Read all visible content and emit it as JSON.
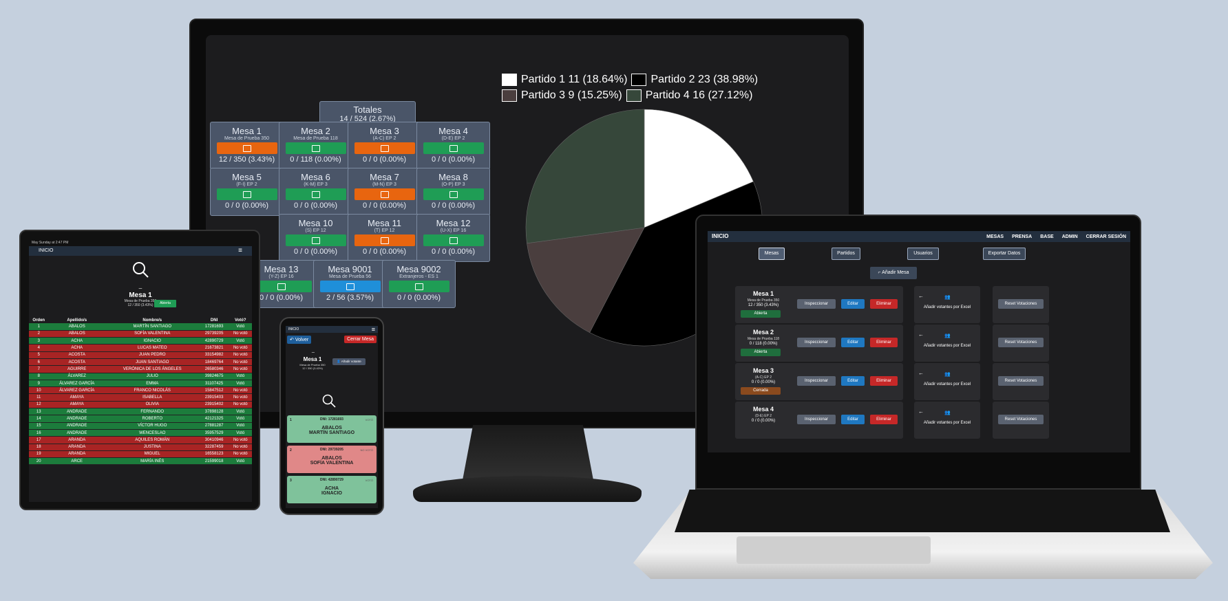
{
  "monitor": {
    "totales": {
      "label": "Totales",
      "count": "14 / 524 (2.67%)"
    },
    "tiles": [
      {
        "name": "Mesa 1",
        "sub": "Mesa de Prueba 350",
        "count": "12 / 350 (3.43%)",
        "state": "orange",
        "icon": "envelope-icon"
      },
      {
        "name": "Mesa 2",
        "sub": "Mesa de Prueba 118",
        "count": "0 / 118 (0.00%)",
        "state": "green",
        "icon": "ballot-icon"
      },
      {
        "name": "Mesa 3",
        "sub": "(A-C) EP 2",
        "count": "0 / 0 (0.00%)",
        "state": "orange",
        "icon": "envelope-icon"
      },
      {
        "name": "Mesa 4",
        "sub": "(D-E) EP 2",
        "count": "0 / 0 (0.00%)",
        "state": "green",
        "icon": "ballot-icon"
      },
      {
        "name": "Mesa 5",
        "sub": "(F-I) EP 2",
        "count": "0 / 0 (0.00%)",
        "state": "green",
        "icon": "ballot-icon"
      },
      {
        "name": "Mesa 6",
        "sub": "(K-M) EP 3",
        "count": "0 / 0 (0.00%)",
        "state": "green",
        "icon": "ballot-icon"
      },
      {
        "name": "Mesa 7",
        "sub": "(M-N) EP 3",
        "count": "0 / 0 (0.00%)",
        "state": "orange",
        "icon": "envelope-icon"
      },
      {
        "name": "Mesa 8",
        "sub": "(O-P) EP 3",
        "count": "0 / 0 (0.00%)",
        "state": "green",
        "icon": "ballot-icon"
      },
      {
        "name": "Mesa 10",
        "sub": "(S) EP 12",
        "count": "0 / 0 (0.00%)",
        "state": "green",
        "icon": "ballot-icon"
      },
      {
        "name": "Mesa 11",
        "sub": "(T) EP 12",
        "count": "0 / 0 (0.00%)",
        "state": "orange",
        "icon": "envelope-icon"
      },
      {
        "name": "Mesa 12",
        "sub": "(U-X) EP 16",
        "count": "0 / 0 (0.00%)",
        "state": "green",
        "icon": "ballot-icon"
      },
      {
        "name": "Mesa 13",
        "sub": "(Y-Z) EP 16",
        "count": "0 / 0 (0.00%)",
        "state": "green",
        "icon": "ballot-icon"
      },
      {
        "name": "Mesa 9001",
        "sub": "Mesa de Prueba 56",
        "count": "2 / 56 (3.57%)",
        "state": "blue",
        "icon": "send-icon"
      },
      {
        "name": "Mesa 9002",
        "sub": "Extranjeros - ES 1",
        "count": "0 / 0 (0.00%)",
        "state": "green",
        "icon": "ballot-icon"
      }
    ],
    "legend": [
      {
        "label": "Partido 1 11 (18.64%)",
        "color": "#ffffff"
      },
      {
        "label": "Partido 2 23 (38.98%)",
        "color": "#000000"
      },
      {
        "label": "Partido 3 9 (15.25%)",
        "color": "#4a3e3e"
      },
      {
        "label": "Partido 4 16 (27.12%)",
        "color": "#36473a"
      }
    ]
  },
  "chart_data": {
    "type": "pie",
    "categories": [
      "Partido 1",
      "Partido 2",
      "Partido 3",
      "Partido 4"
    ],
    "values": [
      11,
      23,
      9,
      16
    ],
    "percentages": [
      18.64,
      38.98,
      15.25,
      27.12
    ],
    "colors": [
      "#ffffff",
      "#000000",
      "#4a3e3e",
      "#36473a"
    ],
    "legend_position": "top"
  },
  "tablet": {
    "status": "May Sunday at 2:47 PM",
    "nav_title": "INICIO",
    "dash": "_",
    "mesa_title": "Mesa 1",
    "mesa_sub": "Mesa de Prueba 350",
    "mesa_count": "12 / 350 (3.43%)",
    "open_badge": "Abierta",
    "headers": [
      "Orden",
      "Apellido/s",
      "Nombre/s",
      "DNI",
      "Votó?"
    ],
    "rows": [
      [
        "1",
        "ABALOS",
        "MARTÍN SANTIAGO",
        "17281693",
        "Votó"
      ],
      [
        "2",
        "ABALOS",
        "SOFÍA VALENTINA",
        "29739205",
        "No votó"
      ],
      [
        "3",
        "ACHA",
        "IGNACIO",
        "42890729",
        "Votó"
      ],
      [
        "4",
        "ACHA",
        "LUCAS MATEO",
        "21673821",
        "No votó"
      ],
      [
        "5",
        "ACOSTA",
        "JUAN PEDRO",
        "33154982",
        "No votó"
      ],
      [
        "6",
        "ACOSTA",
        "JUAN SANTIAGO",
        "18469764",
        "No votó"
      ],
      [
        "7",
        "AGUIRRE",
        "VERÓNICA DE LOS ÁNGELES",
        "26580346",
        "No votó"
      ],
      [
        "8",
        "ÁLVAREZ",
        "JULIO",
        "39824675",
        "Votó"
      ],
      [
        "9",
        "ÁLVAREZ GARCÍA",
        "EMMA",
        "31107425",
        "Votó"
      ],
      [
        "10",
        "ÁLVAREZ GARCÍA",
        "FRANCO NICOLÁS",
        "15847512",
        "No votó"
      ],
      [
        "11",
        "AMAYA",
        "ISABELLA",
        "23915403",
        "No votó"
      ],
      [
        "12",
        "AMAYA",
        "OLIVIA",
        "23915402",
        "No votó"
      ],
      [
        "13",
        "ANDRADE",
        "FERNANDO",
        "37898128",
        "Votó"
      ],
      [
        "14",
        "ANDRADE",
        "ROBERTO",
        "42121325",
        "Votó"
      ],
      [
        "15",
        "ANDRADE",
        "VÍCTOR HUGO",
        "27881287",
        "Votó"
      ],
      [
        "16",
        "ANDRADE",
        "WENCESLAO",
        "35957529",
        "Votó"
      ],
      [
        "17",
        "ARANDA",
        "AQUILES ROMÁN",
        "30410946",
        "No votó"
      ],
      [
        "18",
        "ARANDA",
        "JUSTINA",
        "32287459",
        "No votó"
      ],
      [
        "19",
        "ARANDA",
        "MIGUEL",
        "16558123",
        "No votó"
      ],
      [
        "20",
        "ARCE",
        "MARÍA INÉS",
        "21599018",
        "Votó"
      ]
    ]
  },
  "phone": {
    "nav_title": "INICIO",
    "back": "Volver",
    "close_mesa": "Cerrar Mesa",
    "dash": "_",
    "mesa_title": "Mesa 1",
    "mesa_sub": "Mesa de Prueba 350",
    "mesa_count": "12 / 350 (3.43%)",
    "add_voter": "Añadir votante",
    "cards": [
      {
        "n": "1",
        "dni": "DNI: 17281693",
        "status": "VOTÓ",
        "surname": "ABALOS",
        "name": "MARTÍN SANTIAGO",
        "color": "#7fc29b"
      },
      {
        "n": "2",
        "dni": "DNI: 29739205",
        "status": "NO VOTÓ",
        "surname": "ABALOS",
        "name": "SOFÍA VALENTINA",
        "color": "#e08888"
      },
      {
        "n": "3",
        "dni": "DNI: 42890729",
        "status": "VOTÓ",
        "surname": "ACHA",
        "name": "IGNACIO",
        "color": "#7fc29b"
      }
    ]
  },
  "laptop": {
    "nav_title": "INICIO",
    "nav_links": [
      "MESAS",
      "PRENSA",
      "BASE",
      "ADMIN",
      "CERRAR SESIÓN"
    ],
    "tabs": [
      "Mesas",
      "Partidos",
      "Usuarios",
      "Exportar Datos"
    ],
    "add_mesa": "Añadir Mesa",
    "actions": {
      "inspect": "Inspeccionar",
      "edit": "Editar",
      "delete": "Eliminar",
      "excel": "Añadir votantes por Excel",
      "reset": "Reset Votaciones"
    },
    "rows": [
      {
        "name": "Mesa 1",
        "sub": "Mesa de Prueba 350",
        "count": "12 / 350 (3.43%)",
        "state": "Abierta",
        "state_color": "#1f6e3d"
      },
      {
        "name": "Mesa 2",
        "sub": "Mesa de Prueba 118",
        "count": "0 / 118 (0.00%)",
        "state": "Abierta",
        "state_color": "#1f6e3d"
      },
      {
        "name": "Mesa 3",
        "sub": "(A-C) EP 2",
        "count": "0 / 0 (0.00%)",
        "state": "Cerrada",
        "state_color": "#8a4a1e"
      },
      {
        "name": "Mesa 4",
        "sub": "(D-E) EP 2",
        "count": "0 / 0 (0.00%)",
        "state": "",
        "state_color": ""
      }
    ]
  }
}
